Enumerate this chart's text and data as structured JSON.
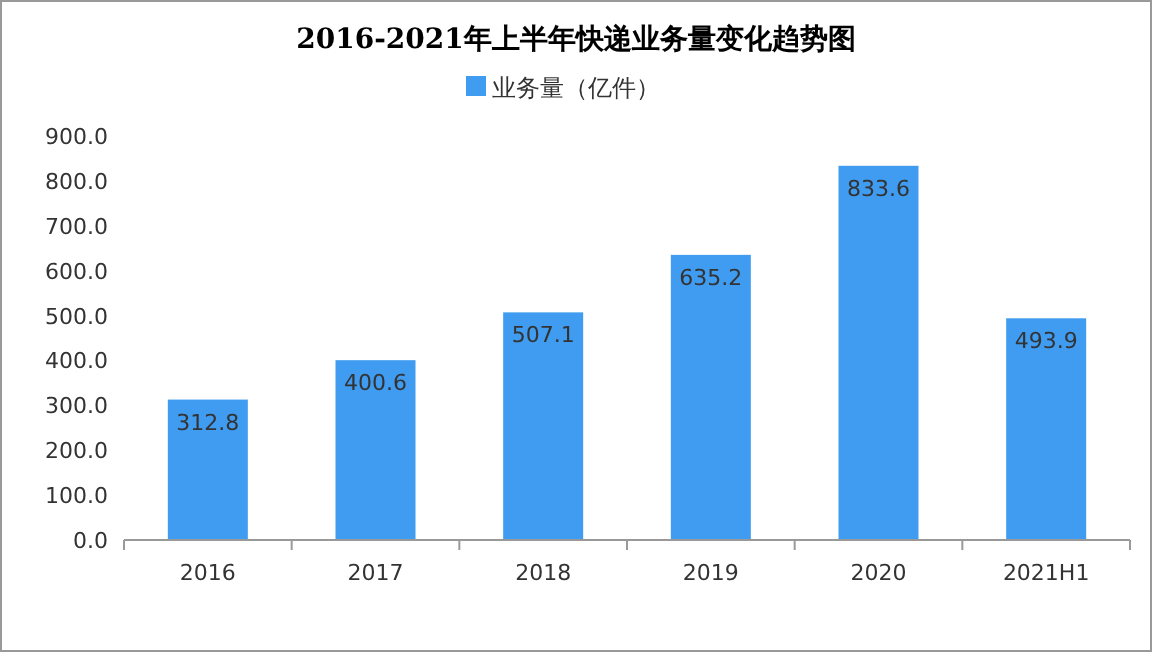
{
  "chart_data": {
    "type": "bar",
    "title": "2016-2021年上半年快递业务量变化趋势图",
    "categories": [
      "2016",
      "2017",
      "2018",
      "2019",
      "2020",
      "2021H1"
    ],
    "series": [
      {
        "name": "业务量（亿件）",
        "color": "#3f9cf0",
        "values": [
          312.8,
          400.6,
          507.1,
          635.2,
          833.6,
          493.9
        ]
      }
    ],
    "ylim": [
      0,
      900
    ],
    "yticks": [
      {
        "value": 0,
        "label": "0.0"
      },
      {
        "value": 100,
        "label": "100.0"
      },
      {
        "value": 200,
        "label": "200.0"
      },
      {
        "value": 300,
        "label": "300.0"
      },
      {
        "value": 400,
        "label": "400.0"
      },
      {
        "value": 500,
        "label": "500.0"
      },
      {
        "value": 600,
        "label": "600.0"
      },
      {
        "value": 700,
        "label": "700.0"
      },
      {
        "value": 800,
        "label": "800.0"
      },
      {
        "value": 900,
        "label": "900.0"
      }
    ],
    "data_labels": true,
    "legend": "top"
  }
}
